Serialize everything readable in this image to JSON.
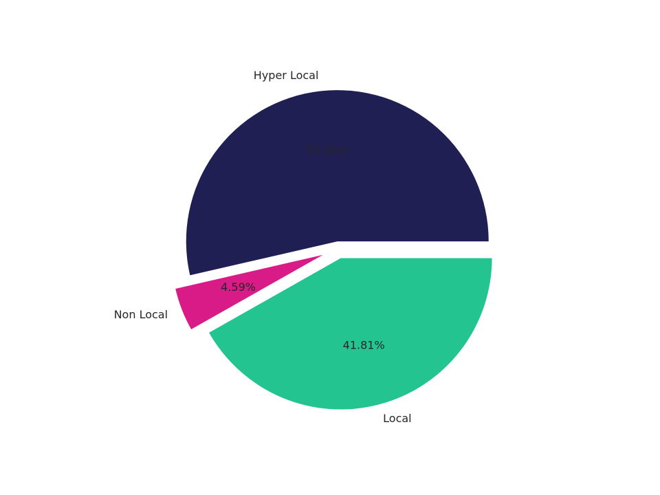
{
  "chart_data": {
    "type": "pie",
    "categories": [
      "Hyper Local",
      "Non Local",
      "Local"
    ],
    "values": [
      53.6,
      4.59,
      41.81
    ],
    "value_labels": [
      "53.60%",
      "4.59%",
      "41.81%"
    ],
    "colors": [
      "#1f1f54",
      "#d81b87",
      "#24c491"
    ]
  }
}
